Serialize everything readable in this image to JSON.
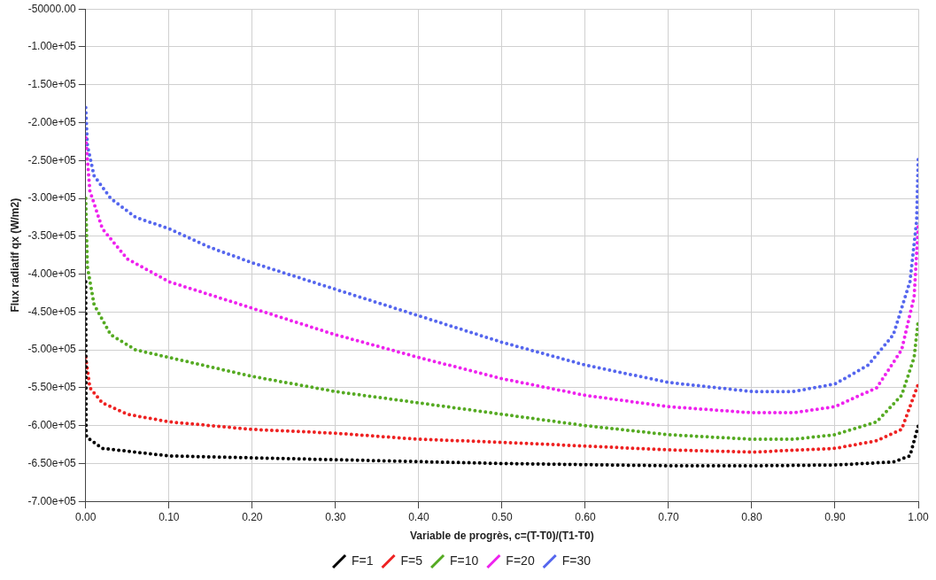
{
  "chart_data": {
    "type": "line",
    "line_style": "dotted",
    "xlabel": "Variable de progrès, c=(T-T0)/(T1-T0)",
    "ylabel": "Flux radiatif qx (W/m2)",
    "xlim": [
      0,
      1
    ],
    "xticks": [
      {
        "value": 0,
        "label": "0.00"
      },
      {
        "value": 0.1,
        "label": "0.10"
      },
      {
        "value": 0.2,
        "label": "0.20"
      },
      {
        "value": 0.3,
        "label": "0.30"
      },
      {
        "value": 0.4,
        "label": "0.40"
      },
      {
        "value": 0.5,
        "label": "0.50"
      },
      {
        "value": 0.6,
        "label": "0.60"
      },
      {
        "value": 0.7,
        "label": "0.70"
      },
      {
        "value": 0.8,
        "label": "0.80"
      },
      {
        "value": 0.9,
        "label": "0.90"
      },
      {
        "value": 1,
        "label": "1.00"
      }
    ],
    "ylim": [
      -700000,
      -50000
    ],
    "yticks": [
      {
        "value": -700000,
        "label": "-7.00e+05"
      },
      {
        "value": -650000,
        "label": "-6.50e+05"
      },
      {
        "value": -600000,
        "label": "-6.00e+05"
      },
      {
        "value": -550000,
        "label": "-5.50e+05"
      },
      {
        "value": -500000,
        "label": "-5.00e+05"
      },
      {
        "value": -450000,
        "label": "-4.50e+05"
      },
      {
        "value": -400000,
        "label": "-4.00e+05"
      },
      {
        "value": -350000,
        "label": "-3.50e+05"
      },
      {
        "value": -300000,
        "label": "-3.00e+05"
      },
      {
        "value": -250000,
        "label": "-2.50e+05"
      },
      {
        "value": -200000,
        "label": "-2.00e+05"
      },
      {
        "value": -150000,
        "label": "-1.50e+05"
      },
      {
        "value": -100000,
        "label": "-1.00e+05"
      },
      {
        "value": -50000,
        "label": "-50000.00"
      }
    ],
    "grid": true,
    "legend": "bottom",
    "series": [
      {
        "name": "F=1",
        "color": "#000000",
        "x": [
          0,
          0.0005,
          0.001,
          0.02,
          0.1,
          0.3,
          0.5,
          0.7,
          0.8,
          0.9,
          0.97,
          0.99,
          1
        ],
        "values": [
          -410000,
          -605000,
          -615000,
          -630000,
          -640000,
          -645000,
          -650000,
          -653000,
          -653000,
          -652000,
          -648000,
          -640000,
          -600000
        ]
      },
      {
        "name": "F=5",
        "color": "#ee2222",
        "x": [
          0,
          0.005,
          0.02,
          0.05,
          0.1,
          0.2,
          0.3,
          0.4,
          0.5,
          0.6,
          0.7,
          0.8,
          0.9,
          0.95,
          0.98,
          1
        ],
        "values": [
          -510000,
          -550000,
          -570000,
          -585000,
          -595000,
          -605000,
          -610000,
          -618000,
          -622000,
          -627000,
          -632000,
          -635000,
          -630000,
          -620000,
          -605000,
          -545000
        ]
      },
      {
        "name": "F=10",
        "color": "#55aa22",
        "x": [
          0,
          0.002,
          0.01,
          0.03,
          0.06,
          0.1,
          0.2,
          0.3,
          0.4,
          0.5,
          0.6,
          0.7,
          0.8,
          0.85,
          0.9,
          0.95,
          0.98,
          0.995,
          1
        ],
        "values": [
          -300000,
          -390000,
          -440000,
          -480000,
          -500000,
          -510000,
          -535000,
          -555000,
          -570000,
          -585000,
          -600000,
          -612000,
          -618000,
          -618000,
          -612000,
          -595000,
          -560000,
          -510000,
          -460000
        ]
      },
      {
        "name": "F=20",
        "color": "#ee22ee",
        "x": [
          0,
          0.005,
          0.02,
          0.05,
          0.1,
          0.2,
          0.3,
          0.4,
          0.5,
          0.6,
          0.7,
          0.8,
          0.85,
          0.9,
          0.95,
          0.98,
          0.995,
          1
        ],
        "values": [
          -220000,
          -290000,
          -340000,
          -380000,
          -410000,
          -445000,
          -480000,
          -510000,
          -538000,
          -560000,
          -575000,
          -583000,
          -583000,
          -575000,
          -550000,
          -500000,
          -430000,
          -335000
        ]
      },
      {
        "name": "F=30",
        "color": "#5566ee",
        "x": [
          0,
          0.002,
          0.01,
          0.03,
          0.06,
          0.1,
          0.15,
          0.2,
          0.3,
          0.4,
          0.5,
          0.6,
          0.7,
          0.8,
          0.85,
          0.9,
          0.94,
          0.97,
          0.99,
          0.998,
          1
        ],
        "values": [
          -180000,
          -230000,
          -270000,
          -300000,
          -325000,
          -340000,
          -365000,
          -385000,
          -420000,
          -455000,
          -490000,
          -520000,
          -543000,
          -555000,
          -555000,
          -545000,
          -520000,
          -480000,
          -410000,
          -330000,
          -245000
        ]
      }
    ]
  }
}
